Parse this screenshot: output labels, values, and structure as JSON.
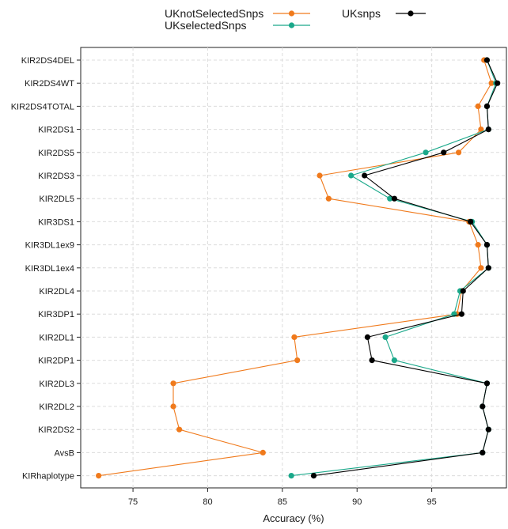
{
  "chart_data": {
    "type": "line",
    "xlabel": "Accuracy (%)",
    "xlim": [
      71.5,
      100
    ],
    "xticks": [
      75,
      80,
      85,
      90,
      95
    ],
    "grid": true,
    "legend_position": "top",
    "categories": [
      "KIR2DS4DEL",
      "KIR2DS4WT",
      "KIR2DS4TOTAL",
      "KIR2DS1",
      "KIR2DS5",
      "KIR2DS3",
      "KIR2DL5",
      "KIR3DS1",
      "KIR3DL1ex9",
      "KIR3DL1ex4",
      "KIR2DL4",
      "KIR3DP1",
      "KIR2DL1",
      "KIR2DP1",
      "KIR2DL3",
      "KIR2DL2",
      "KIR2DS2",
      "AvsB",
      "KIRhaplotype"
    ],
    "series": [
      {
        "name": "UKnotSelectedSnps",
        "color": "#f07a1c",
        "values": [
          98.5,
          99.0,
          98.1,
          98.3,
          96.8,
          87.5,
          88.1,
          97.5,
          98.1,
          98.3,
          97.0,
          96.7,
          85.8,
          86.0,
          77.7,
          77.7,
          78.1,
          83.7,
          72.7
        ]
      },
      {
        "name": "UKselectedSnps",
        "color": "#1aa88a",
        "values": [
          98.7,
          99.3,
          98.7,
          98.8,
          94.6,
          89.6,
          92.2,
          97.7,
          98.7,
          98.8,
          96.9,
          96.5,
          91.9,
          92.5,
          98.7,
          98.4,
          98.8,
          98.4,
          85.6
        ]
      },
      {
        "name": "UKsnps",
        "color": "#000000",
        "values": [
          98.7,
          99.4,
          98.7,
          98.8,
          95.8,
          90.5,
          92.5,
          97.6,
          98.7,
          98.8,
          97.1,
          97.0,
          90.7,
          91.0,
          98.7,
          98.4,
          98.8,
          98.4,
          87.1
        ]
      }
    ]
  }
}
